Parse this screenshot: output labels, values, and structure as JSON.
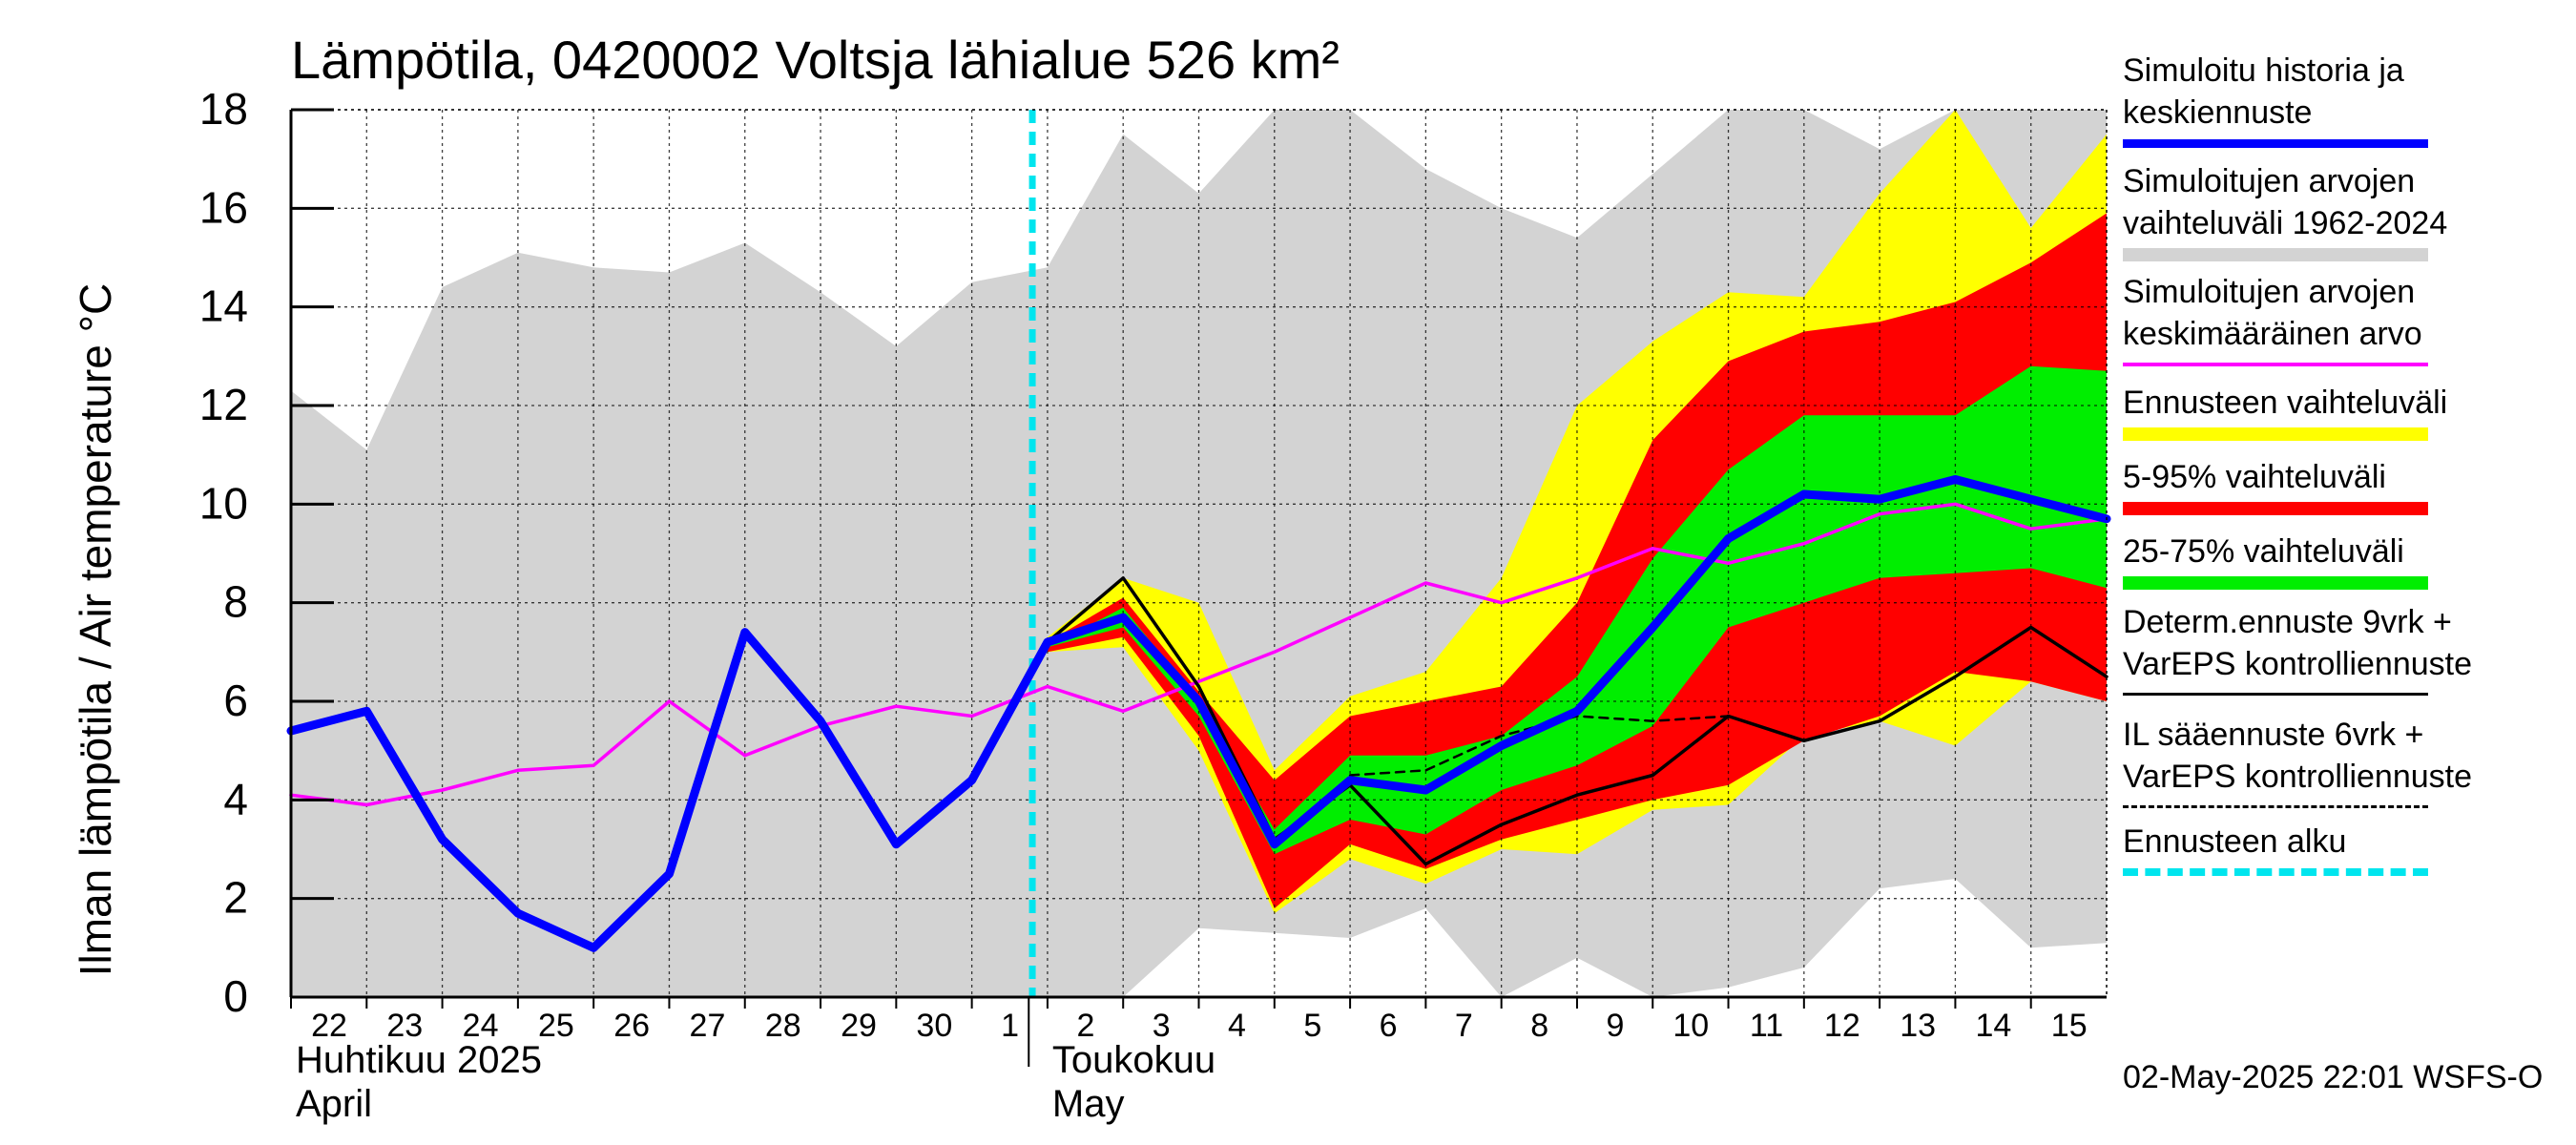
{
  "chart_data": {
    "type": "area",
    "title": "Lämpötila, 0420002 Voltsja lähialue 526 km²",
    "ylabel": "Ilman lämpötila / Air temperature   °C",
    "ylim": [
      0,
      18
    ],
    "yticks": [
      0,
      2,
      4,
      6,
      8,
      10,
      12,
      14,
      16,
      18
    ],
    "x_range": [
      0,
      24
    ],
    "grid": true,
    "day_ticks": [
      {
        "x": 0,
        "label": "22"
      },
      {
        "x": 1,
        "label": "23"
      },
      {
        "x": 2,
        "label": "24"
      },
      {
        "x": 3,
        "label": "25"
      },
      {
        "x": 4,
        "label": "26"
      },
      {
        "x": 5,
        "label": "27"
      },
      {
        "x": 6,
        "label": "28"
      },
      {
        "x": 7,
        "label": "29"
      },
      {
        "x": 8,
        "label": "30"
      },
      {
        "x": 9,
        "label": "1"
      },
      {
        "x": 10,
        "label": "2"
      },
      {
        "x": 11,
        "label": "3"
      },
      {
        "x": 12,
        "label": "4"
      },
      {
        "x": 13,
        "label": "5"
      },
      {
        "x": 14,
        "label": "6"
      },
      {
        "x": 15,
        "label": "7"
      },
      {
        "x": 16,
        "label": "8"
      },
      {
        "x": 17,
        "label": "9"
      },
      {
        "x": 18,
        "label": "10"
      },
      {
        "x": 19,
        "label": "11"
      },
      {
        "x": 20,
        "label": "12"
      },
      {
        "x": 21,
        "label": "13"
      },
      {
        "x": 22,
        "label": "14"
      },
      {
        "x": 23,
        "label": "15"
      }
    ],
    "month_labels": [
      {
        "x": 0,
        "line1": "Huhtikuu  2025",
        "line2": "April"
      },
      {
        "x": 10,
        "line1": "Toukokuu",
        "line2": "May"
      }
    ],
    "month_separator_x": 9.5,
    "forecast_start_x": 9.8,
    "series": [
      {
        "name": "Simuloitujen arvojen vaihteluväli 1962-2024",
        "role": "band",
        "color": "#d3d3d3",
        "x": [
          0,
          1,
          2,
          3,
          4,
          5,
          6,
          7,
          8,
          9,
          10,
          11,
          12,
          13,
          14,
          15,
          16,
          17,
          18,
          19,
          20,
          21,
          22,
          23,
          24
        ],
        "upper": [
          12.3,
          11.1,
          14.4,
          15.1,
          14.8,
          14.7,
          15.3,
          14.3,
          13.2,
          14.5,
          14.8,
          17.5,
          16.3,
          18,
          18,
          16.8,
          16,
          15.4,
          16.7,
          18,
          18,
          17.2,
          18,
          18,
          18
        ],
        "lower": [
          0,
          0,
          0,
          0,
          0,
          0,
          0,
          0,
          0,
          0,
          0,
          0,
          1.4,
          1.3,
          1.2,
          1.8,
          0,
          0.8,
          0,
          0.2,
          0.6,
          2.2,
          2.4,
          1,
          1.1
        ]
      },
      {
        "name": "Ennusteen vaihteluväli",
        "role": "band",
        "color": "#ffff00",
        "x": [
          10,
          11,
          12,
          13,
          14,
          15,
          16,
          17,
          18,
          19,
          20,
          21,
          22,
          23,
          24
        ],
        "upper": [
          7.3,
          8.5,
          8,
          4.6,
          6.1,
          6.6,
          8.5,
          12,
          13.3,
          14.3,
          14.2,
          16.3,
          18,
          15.6,
          17.5
        ],
        "lower": [
          7,
          7.1,
          5,
          1.7,
          2.8,
          2.3,
          3,
          2.9,
          3.8,
          3.9,
          5.3,
          5.6,
          5.1,
          6.4,
          6
        ]
      },
      {
        "name": "5-95% vaihteluväli",
        "role": "band",
        "color": "#ff0000",
        "x": [
          10,
          11,
          12,
          13,
          14,
          15,
          16,
          17,
          18,
          19,
          20,
          21,
          22,
          23,
          24
        ],
        "upper": [
          7.2,
          8.1,
          6.2,
          4.4,
          5.7,
          6,
          6.3,
          8,
          11.3,
          12.9,
          13.5,
          13.7,
          14.1,
          14.9,
          15.9
        ],
        "lower": [
          7,
          7.3,
          5.3,
          1.8,
          3.1,
          2.6,
          3.2,
          3.6,
          4,
          4.3,
          5.2,
          5.7,
          6.6,
          6.4,
          6
        ]
      },
      {
        "name": "25-75% vaihteluväli",
        "role": "band",
        "color": "#00ee00",
        "x": [
          10,
          11,
          12,
          13,
          14,
          15,
          16,
          17,
          18,
          19,
          20,
          21,
          22,
          23,
          24
        ],
        "upper": [
          7.1,
          7.9,
          6,
          3.4,
          4.9,
          4.9,
          5.3,
          6.5,
          8.9,
          10.7,
          11.8,
          11.8,
          11.8,
          12.8,
          12.7
        ],
        "lower": [
          7.1,
          7.5,
          5.7,
          2.9,
          3.6,
          3.3,
          4.2,
          4.7,
          5.5,
          7.5,
          8,
          8.5,
          8.6,
          8.7,
          8.3
        ]
      },
      {
        "name": "Simuloitujen arvojen keskimääräinen arvo",
        "role": "line",
        "color": "#ff00ff",
        "x": [
          0,
          1,
          2,
          3,
          4,
          5,
          6,
          7,
          8,
          9,
          10,
          11,
          12,
          13,
          14,
          15,
          16,
          17,
          18,
          19,
          20,
          21,
          22,
          23,
          24
        ],
        "values": [
          4.1,
          3.9,
          4.2,
          4.6,
          4.7,
          6,
          4.9,
          5.5,
          5.9,
          5.7,
          6.3,
          5.8,
          6.4,
          7,
          7.7,
          8.4,
          8,
          8.5,
          9.1,
          8.8,
          9.2,
          9.8,
          10,
          9.5,
          9.7
        ]
      },
      {
        "name": "Determ.ennuste 9vrk + VarEPS kontrolliennuste",
        "role": "line",
        "color": "#000000",
        "x": [
          9,
          10,
          11,
          12,
          13,
          14,
          15,
          16,
          17,
          18,
          19,
          20,
          21,
          22,
          23,
          24
        ],
        "values": [
          4.4,
          7.2,
          8.5,
          6.3,
          3.2,
          4.3,
          2.7,
          3.5,
          4.1,
          4.5,
          5.7,
          5.2,
          5.6,
          6.5,
          7.5,
          6.5
        ]
      },
      {
        "name": "IL sääennuste 6vrk  +   VarEPS kontrolliennuste",
        "role": "dashed-line",
        "color": "#000000",
        "x": [
          14,
          15,
          16,
          17,
          18,
          19
        ],
        "values": [
          4.5,
          4.6,
          5.3,
          5.7,
          5.6,
          5.7
        ]
      },
      {
        "name": "Simuloitu historia ja keskiennuste",
        "role": "line",
        "color": "#0000ff",
        "x": [
          0,
          1,
          2,
          3,
          4,
          5,
          6,
          7,
          8,
          9,
          10,
          11,
          12,
          13,
          14,
          15,
          16,
          17,
          18,
          19,
          20,
          21,
          22,
          23,
          24
        ],
        "values": [
          5.4,
          5.8,
          3.2,
          1.7,
          1,
          2.5,
          7.4,
          5.6,
          3.1,
          4.4,
          7.2,
          7.7,
          6,
          3.1,
          4.4,
          4.2,
          5.1,
          5.8,
          7.5,
          9.3,
          10.2,
          10.1,
          10.5,
          10.1,
          9.7
        ]
      }
    ]
  },
  "legend": [
    {
      "label": "Simuloitu historia ja\nkeskiennuste",
      "color": "#0000ff",
      "style": "thick"
    },
    {
      "label": "Simuloitujen arvojen\nvaihteluväli 1962-2024",
      "color": "#d3d3d3",
      "style": "band"
    },
    {
      "label": "Simuloitujen arvojen\nkeskimääräinen arvo",
      "color": "#ff00ff",
      "style": "thin"
    },
    {
      "label": "Ennusteen vaihteluväli",
      "color": "#ffff00",
      "style": "band"
    },
    {
      "label": "5-95% vaihteluväli",
      "color": "#ff0000",
      "style": "band"
    },
    {
      "label": "25-75% vaihteluväli",
      "color": "#00ee00",
      "style": "band"
    },
    {
      "label": "Determ.ennuste 9vrk +\nVarEPS kontrolliennuste",
      "color": "#000000",
      "style": "line"
    },
    {
      "label": "IL sääennuste 6vrk  +\n  VarEPS kontrolliennuste",
      "color": "#000000",
      "style": "dashed"
    },
    {
      "label": "Ennusteen alku",
      "color": "#00e5ee",
      "style": "dotted"
    }
  ],
  "timestamp": "02-May-2025 22:01 WSFS-O"
}
